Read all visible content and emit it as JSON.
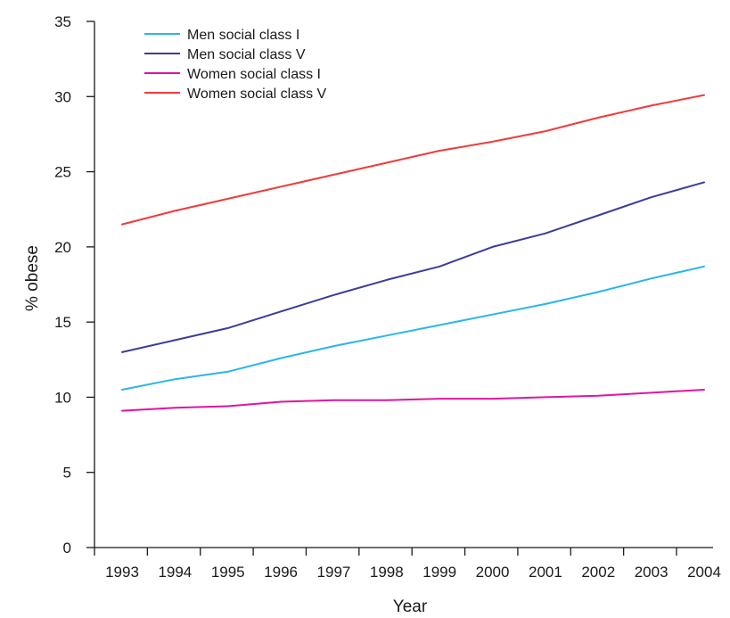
{
  "chart_data": {
    "type": "line",
    "title": "",
    "xlabel": "Year",
    "ylabel": "% obese",
    "categories": [
      "1993",
      "1994",
      "1995",
      "1996",
      "1997",
      "1998",
      "1999",
      "2000",
      "2001",
      "2002",
      "2003",
      "2004"
    ],
    "ylim": [
      0,
      35
    ],
    "yticks": [
      0,
      5,
      10,
      15,
      20,
      25,
      30,
      35
    ],
    "grid": false,
    "legend_position": "top-left",
    "series": [
      {
        "name": "Men social class I",
        "color": "#29b6e8",
        "values": [
          10.5,
          11.2,
          11.7,
          12.6,
          13.4,
          14.1,
          14.8,
          15.5,
          16.2,
          17.0,
          17.9,
          18.7
        ]
      },
      {
        "name": "Men social class V",
        "color": "#3b3d99",
        "values": [
          13.0,
          13.8,
          14.6,
          15.7,
          16.8,
          17.8,
          18.7,
          20.0,
          20.9,
          22.1,
          23.3,
          24.3
        ]
      },
      {
        "name": "Women social class I",
        "color": "#e0159c",
        "values": [
          9.1,
          9.3,
          9.4,
          9.7,
          9.8,
          9.8,
          9.9,
          9.9,
          10.0,
          10.1,
          10.3,
          10.5
        ]
      },
      {
        "name": "Women social class V",
        "color": "#ef3b3b",
        "values": [
          21.5,
          22.4,
          23.2,
          24.0,
          24.8,
          25.6,
          26.4,
          27.0,
          27.7,
          28.6,
          29.4,
          30.1
        ]
      }
    ]
  }
}
